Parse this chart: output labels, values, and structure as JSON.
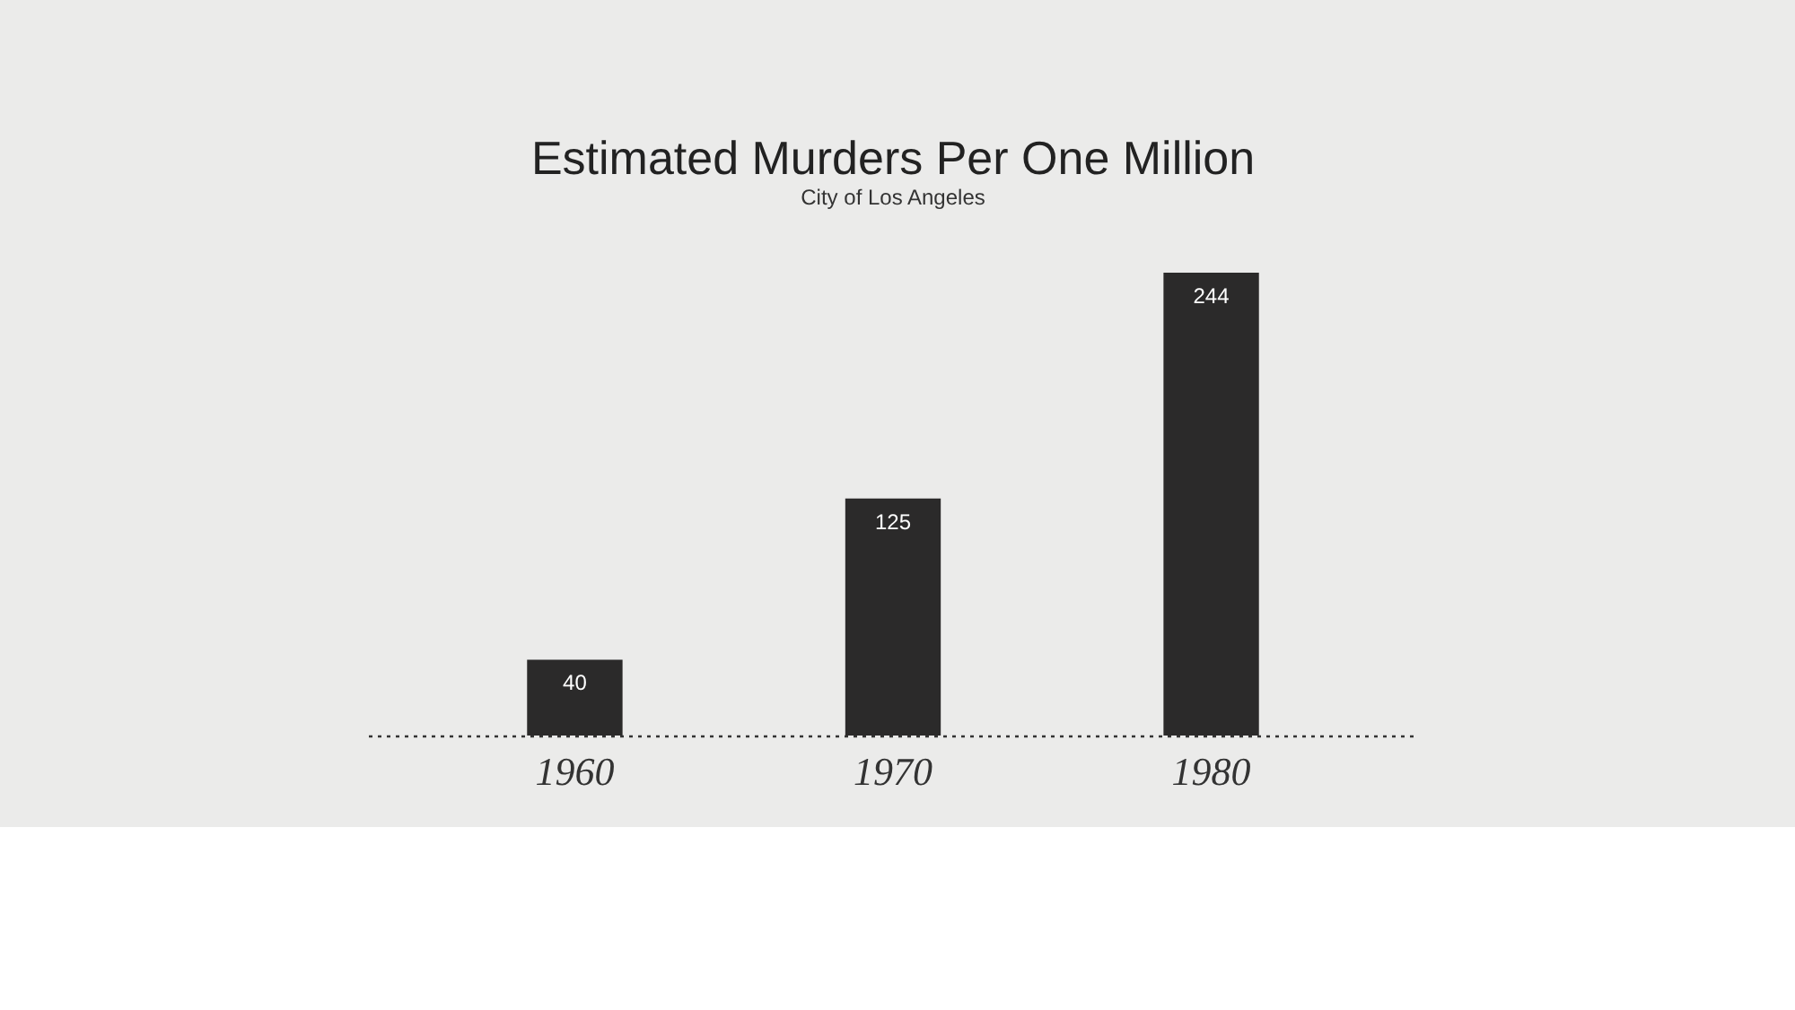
{
  "chart_data": {
    "type": "bar",
    "title": "Estimated Murders Per One Million",
    "subtitle": "City of Los Angeles",
    "categories": [
      "1960",
      "1970",
      "1980"
    ],
    "values": [
      40,
      125,
      244
    ],
    "color": "#2b2a2a",
    "data_labels": true
  }
}
